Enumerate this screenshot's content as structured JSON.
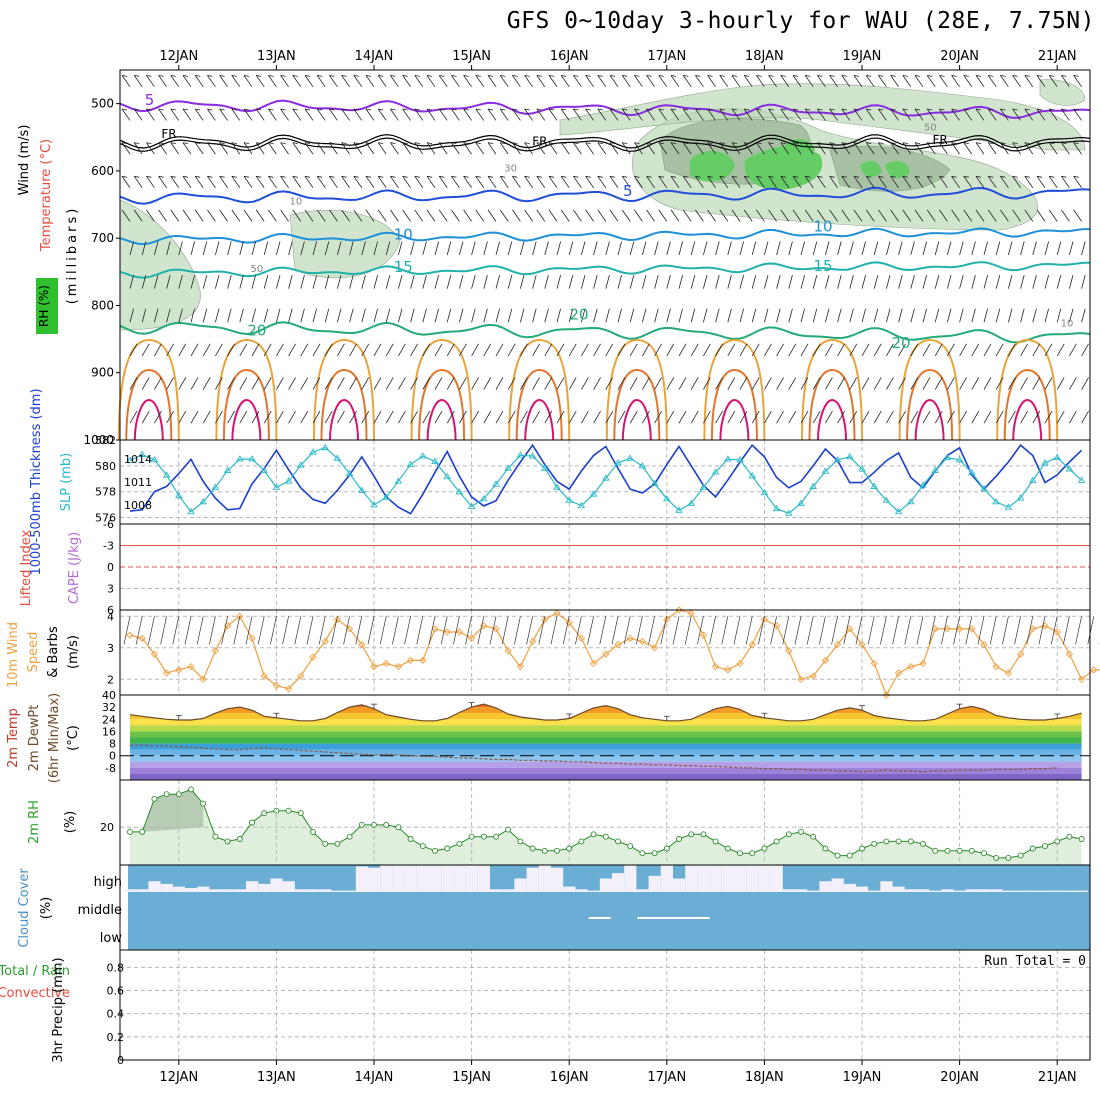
{
  "title": "GFS 0~10day 3-hourly for WAU (28E, 7.75N)",
  "date_labels": [
    "12JAN",
    "13JAN",
    "14JAN",
    "15JAN",
    "16JAN",
    "17JAN",
    "18JAN",
    "19JAN",
    "20JAN",
    "21JAN"
  ],
  "colors": {
    "rh": "#b9d7b4",
    "rh_dark": "#9db89a",
    "rh_green": "#66cc66",
    "t_purple": "#8a2be2",
    "t_blue": "#1f4fd9",
    "t_sky": "#1e90d8",
    "t_teal": "#20b2aa",
    "t_green": "#22aa77",
    "t_orange": "#e8a33a",
    "t_darkorange": "#e0752b",
    "t_magenta": "#d6136e",
    "thick": "#1a3fcf",
    "slp": "#2bbac8",
    "wind10": "#f0a040",
    "cloud": "#6aaed6",
    "rh2m_line": "#2a8a2a",
    "rh2m_fill": "#dfeedd"
  },
  "chart_data": [
    {
      "type": "contour",
      "panel": "upper-air",
      "ylabel_parts": [
        "Wind (m/s)",
        "Temperature (°C)",
        "RH (%)",
        "(millibars)"
      ],
      "ylim": [
        1000,
        450
      ],
      "y_ticks": [
        500,
        600,
        700,
        800,
        900,
        1000
      ],
      "isotherm_labels": [
        {
          "value": "5",
          "x": "11.7JAN",
          "p": 502
        },
        {
          "value": "FR",
          "x": "11.9JAN",
          "p": 551
        },
        {
          "value": "FR",
          "x": "15.7JAN",
          "p": 562
        },
        {
          "value": "FR",
          "x": "19.8JAN",
          "p": 560
        },
        {
          "value": "5",
          "x": "16.6JAN",
          "p": 637
        },
        {
          "value": "10",
          "x": "14.3JAN",
          "p": 702
        },
        {
          "value": "10",
          "x": "18.6JAN",
          "p": 690
        },
        {
          "value": "15",
          "x": "14.3JAN",
          "p": 750
        },
        {
          "value": "15",
          "x": "18.6JAN",
          "p": 749
        },
        {
          "value": "20",
          "x": "12.8JAN",
          "p": 845
        },
        {
          "value": "20",
          "x": "16.1JAN",
          "p": 821
        },
        {
          "value": "20",
          "x": "19.4JAN",
          "p": 863
        }
      ],
      "rh_labels": [
        {
          "value": "30",
          "x": "15.4JAN",
          "p": 601
        },
        {
          "value": "10",
          "x": "13.2JAN",
          "p": 650
        },
        {
          "value": "50",
          "x": "12.8JAN",
          "p": 750
        },
        {
          "value": "50",
          "x": "19.7JAN",
          "p": 540
        },
        {
          "value": "10",
          "x": "21.1JAN",
          "p": 831
        }
      ],
      "isotherm_mean_levels_mb": {
        "5C_upper": 502,
        "FR": 558,
        "5C": 640,
        "10C": 702,
        "15C": 752,
        "20C": 832
      }
    },
    {
      "type": "line",
      "panel": "thickness-slp",
      "ylabel_left": "1000-500mb Thickness (dm)",
      "ylabel_right": "SLP (mb)",
      "left_ticks": [
        576,
        578,
        580,
        582
      ],
      "right_ticks": [
        1008,
        1011,
        1014
      ],
      "left_ylim": [
        575.5,
        582
      ],
      "right_ylim": [
        1005.5,
        1016.5
      ],
      "series": [
        {
          "name": "1000-500mb Thickness",
          "axis": "left",
          "values": [
            576.5,
            576.6,
            578,
            578.4,
            579.4,
            580.5,
            578.8,
            577.5,
            576.6,
            576.7,
            578.6,
            579.8,
            581.2,
            579.7,
            578.3,
            577.4,
            577.1,
            578.1,
            579.3,
            580.7,
            579.2,
            577.6,
            576.8,
            576.3,
            577.8,
            579.5,
            581.1,
            579.2,
            577.6,
            576.9,
            577.3,
            578.9,
            580.3,
            581.6,
            580.1,
            578.8,
            578.2,
            579.6,
            580.8,
            581.5,
            579.8,
            578.2,
            577.9,
            578.6,
            580.1,
            581.5,
            580.0,
            578.5,
            577.6,
            578.9,
            580.3,
            581.6,
            580.7,
            579.1,
            578.3,
            578.8,
            580.0,
            581.3,
            580.4,
            578.7,
            578.7,
            579.5,
            580.4,
            581.0,
            579.1,
            578.3,
            579.6,
            580.8,
            581.4,
            579.3,
            578.2,
            579.2,
            580.3,
            581.6,
            580.8,
            578.7,
            579.3,
            580.3,
            581.2
          ]
        },
        {
          "name": "SLP",
          "axis": "right",
          "values": [
            1013.8,
            1014.6,
            1013.9,
            1011.9,
            1009.2,
            1007.1,
            1008.4,
            1010.3,
            1012.5,
            1014.0,
            1014.0,
            1012.5,
            1010.3,
            1011.1,
            1013.2,
            1014.9,
            1015.5,
            1014.1,
            1012.1,
            1009.9,
            1008.0,
            1009.0,
            1011.1,
            1013.3,
            1014.4,
            1013.7,
            1011.7,
            1009.7,
            1007.8,
            1008.8,
            1010.7,
            1012.8,
            1014.5,
            1014.4,
            1012.8,
            1010.3,
            1008.6,
            1007.9,
            1009.4,
            1011.5,
            1013.5,
            1014.1,
            1013.1,
            1010.8,
            1008.8,
            1007.3,
            1008.2,
            1010.3,
            1012.3,
            1014.0,
            1013.9,
            1011.8,
            1009.6,
            1007.5,
            1006.9,
            1008.2,
            1010.4,
            1012.4,
            1013.9,
            1014.3,
            1012.7,
            1010.4,
            1008.6,
            1007.1,
            1008.4,
            1010.6,
            1012.5,
            1014.2,
            1013.9,
            1012.2,
            1010.1,
            1008.4,
            1007.7,
            1008.9,
            1011.2,
            1013.5,
            1014.2,
            1012.7,
            1011.2
          ]
        }
      ]
    },
    {
      "type": "line",
      "panel": "lifted-index",
      "ylabel_left": "Lifted Index",
      "ylabel_right": "CAPE (J/kg)",
      "ticks": [
        "-6",
        "-3",
        "0",
        "3",
        "6"
      ],
      "ylim": [
        -6,
        6
      ],
      "reference_lines": [
        -3,
        0
      ],
      "series": []
    },
    {
      "type": "line",
      "panel": "wind-10m",
      "ylabel_parts": [
        "10m Wind",
        "Speed",
        "& Barbs",
        "(m/s)"
      ],
      "y_ticks": [
        2,
        3,
        4
      ],
      "ylim": [
        1.5,
        4.2
      ],
      "series": [
        {
          "name": "10m Wind Speed",
          "values": [
            3.4,
            3.3,
            2.8,
            2.2,
            2.3,
            2.4,
            2.0,
            2.9,
            3.7,
            4.0,
            3.3,
            2.1,
            1.8,
            1.7,
            2.1,
            2.7,
            3.2,
            3.9,
            3.6,
            3.1,
            2.4,
            2.5,
            2.4,
            2.6,
            2.6,
            3.6,
            3.5,
            3.5,
            3.3,
            3.7,
            3.6,
            2.9,
            2.4,
            3.2,
            3.9,
            4.1,
            3.8,
            3.3,
            2.5,
            2.8,
            3.1,
            3.3,
            3.2,
            3.0,
            3.9,
            4.2,
            4.1,
            3.4,
            2.4,
            2.3,
            2.5,
            3.1,
            3.9,
            3.7,
            2.9,
            2.0,
            2.1,
            2.6,
            3.1,
            3.6,
            3.1,
            2.5,
            1.5,
            2.2,
            2.4,
            2.5,
            3.6,
            3.6,
            3.6,
            3.6,
            3.1,
            2.4,
            2.2,
            2.8,
            3.6,
            3.7,
            3.5,
            2.8,
            2.0,
            2.3,
            2.3,
            3.8,
            3.7
          ]
        }
      ]
    },
    {
      "type": "area",
      "panel": "temperature-2m",
      "ylabel_parts": [
        "2m Temp",
        "2m DewPt",
        "(6hr Min/Max)",
        "(°C)"
      ],
      "ticks": [
        "40",
        "32",
        "24",
        "16",
        "8",
        "0",
        "-8"
      ],
      "ylim": [
        -16,
        40
      ],
      "series": [
        {
          "name": "2m Temp",
          "values": [
            27,
            26,
            25,
            24,
            23.5,
            23.5,
            24.5,
            28,
            31,
            32,
            30,
            26,
            25,
            24,
            23,
            23,
            24.5,
            28.5,
            32,
            33.5,
            31,
            27,
            25.5,
            24,
            23,
            23,
            24.5,
            28.5,
            32,
            34,
            31.5,
            27.5,
            25.5,
            24.5,
            23.5,
            23.5,
            24.5,
            28,
            31.5,
            33,
            31,
            27,
            25,
            24,
            23,
            23,
            24,
            27.5,
            31,
            32.5,
            30.5,
            26.5,
            25,
            24,
            23,
            23,
            24,
            27,
            30,
            31.5,
            30,
            26.5,
            25,
            24,
            23,
            23,
            24,
            27.5,
            31,
            32.5,
            30.5,
            26.5,
            25,
            24,
            23.5,
            23.5,
            24.5,
            26,
            28
          ]
        },
        {
          "name": "2m DewPt",
          "values": [
            7,
            7,
            6.5,
            6.5,
            6,
            5.5,
            5,
            4.5,
            4,
            4,
            4.5,
            5,
            4.5,
            4,
            3.5,
            3,
            2.5,
            2,
            1.5,
            1,
            0.5,
            1,
            0.5,
            0,
            -0.5,
            -0.5,
            -1,
            -1.5,
            -1.5,
            -2,
            -2.5,
            -2.5,
            -3,
            -3,
            -3.5,
            -3.5,
            -4,
            -4,
            -4.5,
            -5,
            -5,
            -5.5,
            -5.5,
            -6,
            -6,
            -6.5,
            -6.5,
            -7,
            -7,
            -7.5,
            -8,
            -8,
            -8.5,
            -8.5,
            -9,
            -9,
            -9.5,
            -9.5,
            -10,
            -10,
            -10.5,
            -10,
            -9.5,
            -10,
            -10,
            -10.5,
            -10,
            -10,
            -9.5,
            -9.5,
            -9.5,
            -9,
            -9,
            -9,
            -8.5,
            -8.5,
            -8
          ]
        }
      ]
    },
    {
      "type": "area",
      "panel": "rh-2m",
      "ylabel_parts": [
        "2m RH",
        "(%)"
      ],
      "y_ticks": [
        20
      ],
      "ylim": [
        4,
        40
      ],
      "series": [
        {
          "name": "2m RH",
          "values": [
            18,
            18,
            32,
            34,
            34,
            36,
            30,
            16,
            14,
            15,
            22,
            26,
            27,
            27,
            26,
            18,
            13,
            13,
            16,
            21,
            21,
            21,
            20,
            15,
            12,
            10,
            11,
            13,
            16,
            16,
            16,
            19,
            14,
            11,
            10,
            10,
            11,
            14,
            17,
            16,
            14,
            12,
            9,
            9,
            11,
            15,
            17,
            17,
            14,
            11,
            9,
            9,
            11,
            14,
            17,
            18,
            16,
            11,
            8,
            8,
            11,
            13,
            14,
            14,
            14,
            13,
            10,
            10,
            10,
            10,
            9,
            7,
            7,
            8,
            11,
            12,
            14,
            16,
            15
          ]
        }
      ]
    },
    {
      "type": "bar",
      "panel": "cloud-cover",
      "ylabel_parts": [
        "Cloud Cover",
        "(%)"
      ],
      "level_labels": [
        "high",
        "middle",
        "low"
      ]
    },
    {
      "type": "bar",
      "panel": "precip-3hr",
      "ylabel_parts": [
        "Total / Rain",
        "Convective",
        "3hr Precip (mm)"
      ],
      "y_ticks": [
        "0",
        "0.2",
        "0.4",
        "0.6",
        "0.8"
      ],
      "ylim": [
        0,
        0.95
      ],
      "run_total": "Run Total = 0",
      "series": []
    }
  ]
}
